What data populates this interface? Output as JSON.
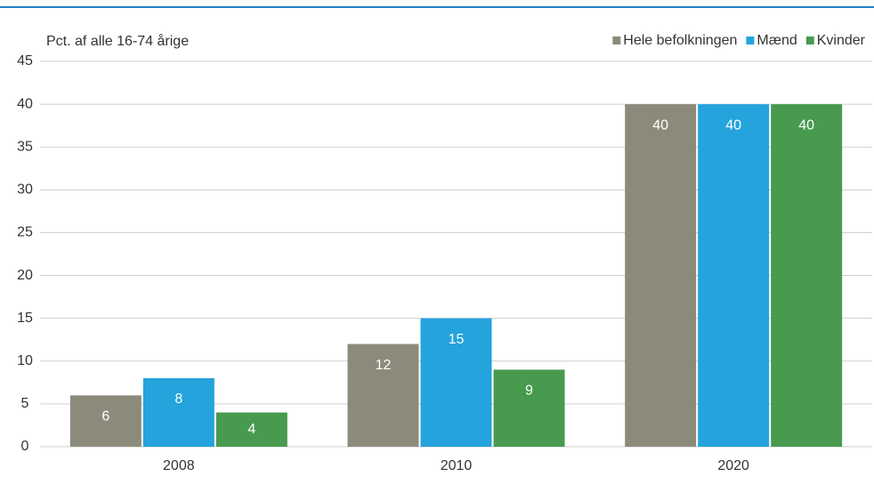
{
  "chart_data": {
    "type": "bar",
    "ylabel": "Pct. af alle 16-74 årige",
    "categories": [
      "2008",
      "2010",
      "2020"
    ],
    "series": [
      {
        "name": "Hele befolkningen",
        "color": "#8c8b7b",
        "values": [
          6,
          12,
          40
        ]
      },
      {
        "name": "Mænd",
        "color": "#24a3dd",
        "values": [
          8,
          15,
          40
        ]
      },
      {
        "name": "Kvinder",
        "color": "#479a4e",
        "values": [
          4,
          9,
          40
        ]
      }
    ],
    "ylim": [
      0,
      45
    ],
    "yticks": [
      0,
      5,
      10,
      15,
      20,
      25,
      30,
      35,
      40,
      45
    ],
    "grid": true,
    "legend": "top-right"
  }
}
